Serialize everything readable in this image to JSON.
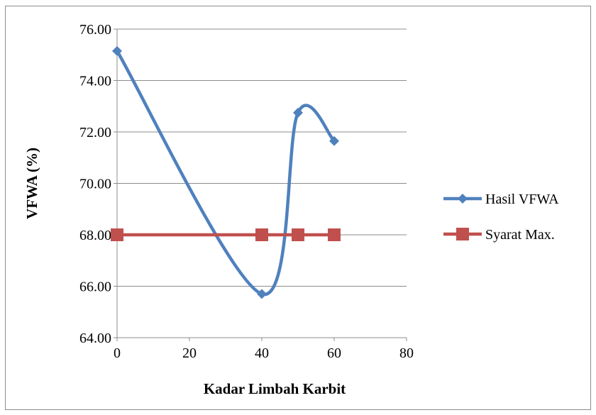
{
  "chart_data": {
    "type": "line",
    "xlabel": "Kadar Limbah Karbit",
    "ylabel": "VFWA (%)",
    "xlim": [
      0,
      80
    ],
    "ylim": [
      64,
      76
    ],
    "xticks": [
      0,
      20,
      40,
      60,
      80
    ],
    "yticks": [
      64,
      66,
      68,
      70,
      72,
      74,
      76
    ],
    "ytick_format": "fixed2",
    "grid": "horizontal",
    "legend_position": "right",
    "series": [
      {
        "name": "Hasil VFWA",
        "color": "#4f81bd",
        "marker": "diamond",
        "smooth": true,
        "x": [
          0,
          40,
          50,
          60
        ],
        "y": [
          75.15,
          65.7,
          72.75,
          71.65
        ]
      },
      {
        "name": "Syarat Max.",
        "color": "#c0504d",
        "marker": "square",
        "smooth": false,
        "x": [
          0,
          40,
          50,
          60
        ],
        "y": [
          68.0,
          68.0,
          68.0,
          68.0
        ]
      }
    ]
  }
}
